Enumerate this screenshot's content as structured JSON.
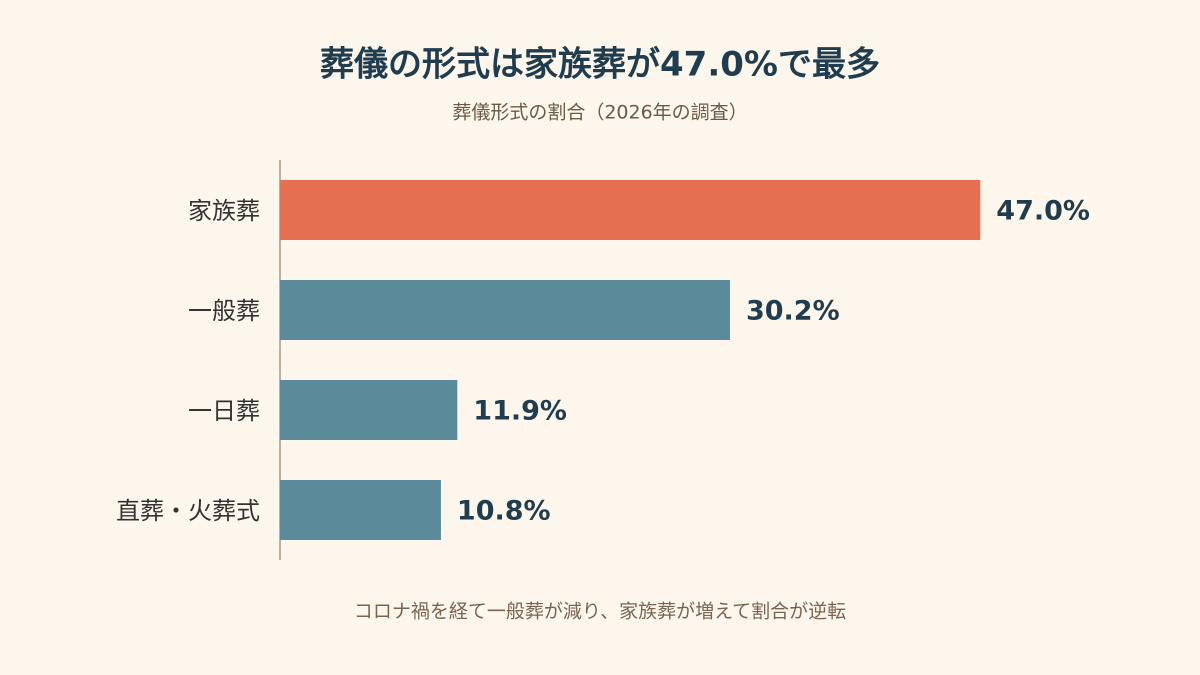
{
  "chart_data": {
    "type": "bar",
    "orientation": "horizontal",
    "title": "葬儀の形式は家族葬が47.0%で最多",
    "subtitle": "葬儀形式の割合（2026年の調査）",
    "note": "コロナ禍を経て一般葬が減り、家族葬が増えて割合が逆転",
    "categories": [
      "家族葬",
      "一般葬",
      "一日葬",
      "直葬・火葬式"
    ],
    "values": [
      47.0,
      30.2,
      11.9,
      10.8
    ],
    "value_labels": [
      "47.0%",
      "30.2%",
      "11.9%",
      "10.8%"
    ],
    "colors": [
      "#e46f51",
      "#5b8b9a",
      "#5b8b9a",
      "#5b8b9a"
    ],
    "xlim": [
      0,
      50
    ]
  }
}
